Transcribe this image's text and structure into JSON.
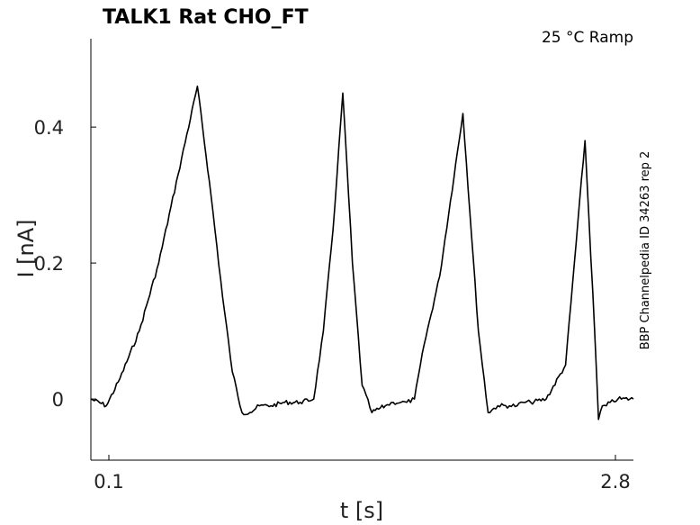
{
  "header": {
    "title": "TALK1  Rat  CHO_FT",
    "condition": "25 °C  Ramp"
  },
  "side_label": "BBP Channelpedia ID 34263 rep 2",
  "chart_data": {
    "type": "line",
    "xlabel": "t [s]",
    "ylabel": "I [nA]",
    "x_ticks": [
      {
        "value": 0.1,
        "label": "0.1"
      },
      {
        "value": 2.8,
        "label": "2.8"
      }
    ],
    "y_ticks": [
      {
        "value": 0,
        "label": "0"
      },
      {
        "value": 0.2,
        "label": "0.2"
      },
      {
        "value": 0.4,
        "label": "0.4"
      }
    ],
    "xlim": [
      0.0,
      2.8
    ],
    "ylim": [
      -0.09,
      0.53
    ],
    "grid": false,
    "series": [
      {
        "color": "#000000",
        "x": [
          0.0,
          0.08,
          0.15,
          0.25,
          0.35,
          0.45,
          0.55,
          0.62,
          0.68,
          0.73,
          0.78,
          0.82,
          0.87,
          0.93,
          1.0,
          1.08,
          1.15,
          1.2,
          1.25,
          1.3,
          1.35,
          1.4,
          1.45,
          1.52,
          1.56,
          1.6,
          1.63,
          1.67,
          1.72,
          1.8,
          1.92,
          2.0,
          2.05,
          2.1,
          2.16,
          2.2,
          2.23,
          2.27,
          2.35,
          2.45,
          2.55,
          2.6,
          2.62,
          2.64,
          2.66,
          2.68,
          2.72,
          2.8
        ],
        "y": [
          0.0,
          -0.01,
          0.03,
          0.1,
          0.2,
          0.33,
          0.46,
          0.3,
          0.15,
          0.04,
          -0.02,
          -0.02,
          -0.01,
          -0.01,
          -0.005,
          -0.005,
          0.0,
          0.1,
          0.25,
          0.45,
          0.2,
          0.02,
          -0.02,
          -0.01,
          -0.005,
          -0.005,
          -0.005,
          0.0,
          0.08,
          0.18,
          0.42,
          0.1,
          -0.02,
          -0.01,
          -0.01,
          -0.01,
          -0.005,
          -0.005,
          0.0,
          0.05,
          0.38,
          0.1,
          -0.03,
          -0.01,
          -0.01,
          -0.005,
          0.0,
          0.0
        ]
      }
    ]
  }
}
